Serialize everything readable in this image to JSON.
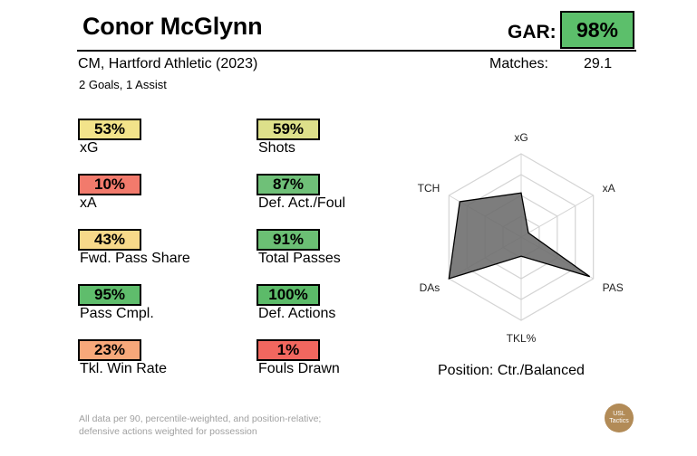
{
  "header": {
    "player_name": "Conor McGlynn",
    "gar_label": "GAR:",
    "gar_value": "98%",
    "gar_color": "#5cbf6b",
    "subtitle": "CM, Hartford Athletic (2023)",
    "stat_line": "2 Goals,  1 Assist",
    "matches_label": "Matches:",
    "matches_value": "29.1"
  },
  "metrics": [
    {
      "value": "53%",
      "label": "xG",
      "color": "#f2e38a"
    },
    {
      "value": "59%",
      "label": "Shots",
      "color": "#dde08a"
    },
    {
      "value": "10%",
      "label": "xA",
      "color": "#f27a6c"
    },
    {
      "value": "87%",
      "label": "Def. Act./Foul",
      "color": "#6fc078"
    },
    {
      "value": "43%",
      "label": "Fwd. Pass Share",
      "color": "#f7d98a"
    },
    {
      "value": "91%",
      "label": "Total Passes",
      "color": "#6bbf74"
    },
    {
      "value": "95%",
      "label": "Pass Cmpl.",
      "color": "#5fbd6c"
    },
    {
      "value": "100%",
      "label": "Def. Actions",
      "color": "#5cbb69"
    },
    {
      "value": "23%",
      "label": "Tkl. Win Rate",
      "color": "#f7a87a"
    },
    {
      "value": "1%",
      "label": "Fouls Drawn",
      "color": "#f2675f"
    }
  ],
  "chart_data": {
    "type": "radar",
    "axes": [
      "xG",
      "xA",
      "PAS",
      "TKL%",
      "DAs",
      "TCH"
    ],
    "values": [
      53,
      10,
      95,
      23,
      100,
      85
    ],
    "range": [
      0,
      100
    ],
    "rings": 4,
    "fill_color": "#6b6b6b"
  },
  "position": "Position: Ctr./Balanced",
  "footnote": {
    "line1": "All data per 90, percentile-weighted, and position-relative;",
    "line2": "defensive actions weighted for possession"
  },
  "brand": {
    "line1": "USL",
    "line2": "Tactics",
    "color": "#b28b57"
  }
}
